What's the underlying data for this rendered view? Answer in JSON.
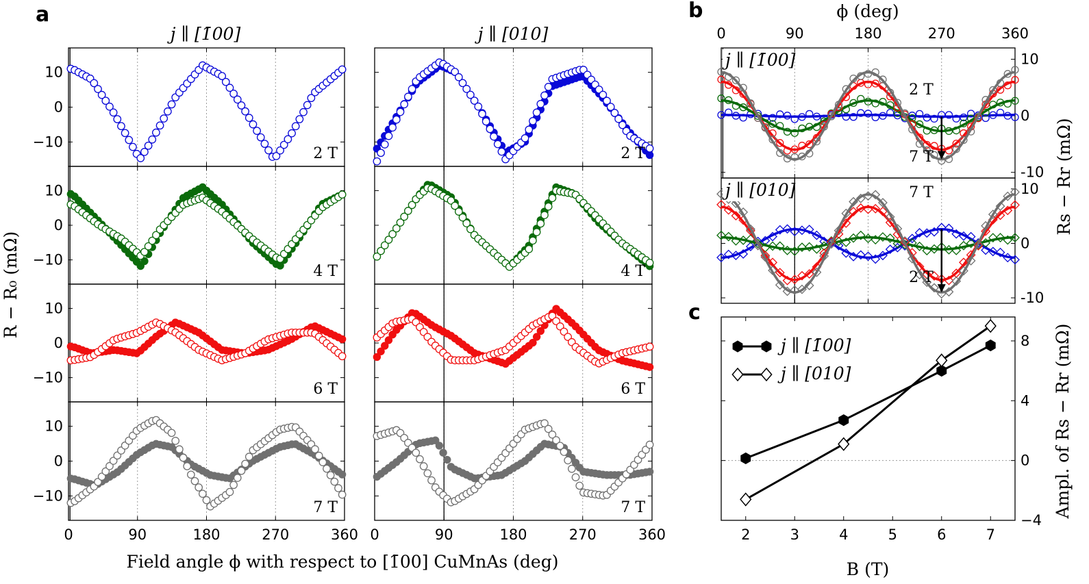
{
  "panel_letters": {
    "a": "a",
    "b": "b",
    "c": "c"
  },
  "colors": {
    "2T": "#0a0ad8",
    "4T": "#0b6b0b",
    "6T": "#f01010",
    "7T": "#707070"
  },
  "chart_data": [
    {
      "id": "a",
      "type": "scatter",
      "column_titles": [
        "j ∥ [1̄00]",
        "j ∥ [010]"
      ],
      "ylabel": "R − R₀ (mΩ)",
      "xlabel": "Field angle ϕ with respect to [1̄00] CuMnAs (deg)",
      "xlim": [
        0,
        360
      ],
      "ylim": [
        -17,
        17
      ],
      "xticks": [
        0,
        90,
        180,
        270,
        360
      ],
      "yticks": [
        -10,
        0,
        10
      ],
      "rows": [
        {
          "label": "2 T",
          "field": "2T",
          "left": {
            "open": [
              [
                5,
                11
              ],
              [
                30,
                8
              ],
              [
                60,
                -2
              ],
              [
                93,
                -15
              ],
              [
                110,
                -9
              ],
              [
                140,
                3
              ],
              [
                175,
                12
              ],
              [
                200,
                9
              ],
              [
                230,
                -1
              ],
              [
                268,
                -15
              ],
              [
                290,
                -8
              ],
              [
                320,
                4
              ],
              [
                358,
                11
              ]
            ],
            "filled": [
              [
                5,
                11
              ],
              [
                30,
                8
              ],
              [
                60,
                -2
              ],
              [
                93,
                -15
              ],
              [
                110,
                -9
              ],
              [
                140,
                3
              ],
              [
                175,
                12
              ],
              [
                200,
                9
              ],
              [
                230,
                -1
              ],
              [
                268,
                -15
              ],
              [
                290,
                -8
              ],
              [
                320,
                4
              ],
              [
                358,
                11
              ]
            ]
          },
          "right": {
            "open": [
              [
                0,
                -17
              ],
              [
                25,
                -5
              ],
              [
                55,
                8
              ],
              [
                85,
                13
              ],
              [
                105,
                10
              ],
              [
                135,
                0
              ],
              [
                170,
                -15
              ],
              [
                195,
                -9
              ],
              [
                230,
                8
              ],
              [
                270,
                11
              ],
              [
                295,
                4
              ],
              [
                330,
                -8
              ],
              [
                358,
                -12
              ]
            ],
            "filled": [
              [
                0,
                -13
              ],
              [
                25,
                -4
              ],
              [
                55,
                7
              ],
              [
                85,
                12
              ],
              [
                105,
                10
              ],
              [
                135,
                0
              ],
              [
                170,
                -13
              ],
              [
                195,
                -10
              ],
              [
                230,
                6
              ],
              [
                270,
                9
              ],
              [
                295,
                3
              ],
              [
                330,
                -7
              ],
              [
                358,
                -14
              ]
            ]
          }
        },
        {
          "label": "4 T",
          "field": "4T",
          "left": {
            "open": [
              [
                5,
                6
              ],
              [
                40,
                0
              ],
              [
                70,
                -4
              ],
              [
                95,
                -9
              ],
              [
                120,
                -1
              ],
              [
                150,
                6
              ],
              [
                175,
                8
              ],
              [
                200,
                4
              ],
              [
                240,
                -4
              ],
              [
                275,
                -10
              ],
              [
                300,
                -3
              ],
              [
                330,
                5
              ],
              [
                358,
                9
              ]
            ],
            "filled": [
              [
                5,
                9
              ],
              [
                40,
                1
              ],
              [
                70,
                -6
              ],
              [
                95,
                -12
              ],
              [
                120,
                -2
              ],
              [
                150,
                8
              ],
              [
                175,
                11
              ],
              [
                200,
                6
              ],
              [
                240,
                -5
              ],
              [
                275,
                -12
              ],
              [
                300,
                -4
              ],
              [
                330,
                6
              ],
              [
                358,
                9
              ]
            ]
          },
          "right": {
            "open": [
              [
                0,
                -10
              ],
              [
                25,
                -2
              ],
              [
                55,
                8
              ],
              [
                70,
                11
              ],
              [
                100,
                7
              ],
              [
                130,
                -3
              ],
              [
                175,
                -12
              ],
              [
                200,
                -7
              ],
              [
                235,
                10
              ],
              [
                260,
                9
              ],
              [
                290,
                2
              ],
              [
                320,
                -5
              ],
              [
                358,
                -11
              ]
            ],
            "filled": [
              [
                0,
                -10
              ],
              [
                25,
                -2
              ],
              [
                55,
                8
              ],
              [
                70,
                12
              ],
              [
                100,
                8
              ],
              [
                130,
                -3
              ],
              [
                175,
                -12
              ],
              [
                200,
                -6
              ],
              [
                235,
                11
              ],
              [
                260,
                9
              ],
              [
                290,
                1
              ],
              [
                320,
                -5
              ],
              [
                358,
                -12
              ]
            ]
          }
        },
        {
          "label": "6 T",
          "field": "6T",
          "left": {
            "open": [
              [
                5,
                -5
              ],
              [
                30,
                -4
              ],
              [
                60,
                1
              ],
              [
                90,
                3
              ],
              [
                115,
                6
              ],
              [
                140,
                3
              ],
              [
                170,
                -2
              ],
              [
                200,
                -5
              ],
              [
                230,
                -3
              ],
              [
                260,
                1
              ],
              [
                290,
                3
              ],
              [
                320,
                3
              ],
              [
                358,
                -4
              ]
            ],
            "filled": [
              [
                5,
                -1
              ],
              [
                30,
                -3
              ],
              [
                60,
                -2
              ],
              [
                90,
                -3
              ],
              [
                115,
                2
              ],
              [
                140,
                6
              ],
              [
                170,
                3
              ],
              [
                200,
                -2
              ],
              [
                230,
                -3
              ],
              [
                260,
                -2
              ],
              [
                290,
                1
              ],
              [
                320,
                5
              ],
              [
                358,
                1
              ]
            ]
          },
          "right": {
            "open": [
              [
                0,
                1
              ],
              [
                25,
                6
              ],
              [
                50,
                7
              ],
              [
                75,
                0
              ],
              [
                100,
                -5
              ],
              [
                130,
                -5
              ],
              [
                170,
                -2
              ],
              [
                205,
                5
              ],
              [
                230,
                8
              ],
              [
                260,
                -1
              ],
              [
                290,
                -6
              ],
              [
                320,
                -3
              ],
              [
                358,
                -1
              ]
            ],
            "filled": [
              [
                0,
                -5
              ],
              [
                25,
                3
              ],
              [
                50,
                9
              ],
              [
                75,
                5
              ],
              [
                100,
                2
              ],
              [
                130,
                -3
              ],
              [
                170,
                -6
              ],
              [
                205,
                0
              ],
              [
                235,
                10
              ],
              [
                260,
                5
              ],
              [
                290,
                -2
              ],
              [
                320,
                -5
              ],
              [
                358,
                -7
              ]
            ]
          }
        },
        {
          "label": "7 T",
          "field": "7T",
          "left": {
            "open": [
              [
                5,
                -12
              ],
              [
                35,
                -7
              ],
              [
                65,
                2
              ],
              [
                90,
                9
              ],
              [
                113,
                12
              ],
              [
                135,
                8
              ],
              [
                160,
                -4
              ],
              [
                185,
                -13
              ],
              [
                210,
                -9
              ],
              [
                240,
                3
              ],
              [
                275,
                9
              ],
              [
                295,
                10
              ],
              [
                320,
                4
              ],
              [
                358,
                -10
              ]
            ],
            "filled": [
              [
                5,
                -5
              ],
              [
                35,
                -7
              ],
              [
                65,
                -3
              ],
              [
                90,
                2
              ],
              [
                113,
                5
              ],
              [
                135,
                4
              ],
              [
                160,
                -1
              ],
              [
                185,
                -4
              ],
              [
                210,
                -5
              ],
              [
                240,
                0
              ],
              [
                275,
                4
              ],
              [
                295,
                5
              ],
              [
                320,
                2
              ],
              [
                358,
                -4
              ]
            ]
          },
          "right": {
            "open": [
              [
                0,
                7
              ],
              [
                30,
                9
              ],
              [
                55,
                2
              ],
              [
                80,
                -8
              ],
              [
                100,
                -12
              ],
              [
                130,
                -8
              ],
              [
                165,
                1
              ],
              [
                195,
                9
              ],
              [
                220,
                11
              ],
              [
                245,
                3
              ],
              [
                270,
                -9
              ],
              [
                300,
                -10
              ],
              [
                330,
                -3
              ],
              [
                358,
                5
              ]
            ],
            "filled": [
              [
                0,
                -5
              ],
              [
                30,
                0
              ],
              [
                55,
                5
              ],
              [
                80,
                6
              ],
              [
                100,
                -2
              ],
              [
                130,
                -5
              ],
              [
                165,
                -4
              ],
              [
                195,
                0
              ],
              [
                220,
                5
              ],
              [
                245,
                4
              ],
              [
                270,
                -3
              ],
              [
                300,
                -4
              ],
              [
                330,
                -4
              ],
              [
                358,
                -3
              ]
            ]
          }
        }
      ]
    },
    {
      "id": "b",
      "type": "scatter",
      "xlabel": "ϕ (deg)",
      "ylabel": "Rs − Rr (mΩ)",
      "xlim": [
        0,
        360
      ],
      "ylim": [
        -11,
        12
      ],
      "xticks": [
        0,
        90,
        180,
        270,
        360
      ],
      "yticks": [
        -10,
        0,
        10
      ],
      "ytick_labels": [
        "-10",
        "0",
        "10"
      ],
      "top": {
        "label": "j ∥ [1̄00]",
        "fields": [
          "2T",
          "4T",
          "6T",
          "7T"
        ],
        "amplitudes": [
          0.15,
          2.7,
          6.0,
          7.7
        ],
        "annotation_start": "2 T",
        "annotation_end": "7 T"
      },
      "bottom": {
        "label": "j ∥ [010]",
        "fields": [
          "2T",
          "4T",
          "6T",
          "7T"
        ],
        "amplitudes": [
          -2.6,
          1.1,
          6.7,
          9.0
        ],
        "annotation_start": "7 T",
        "annotation_end": "2 T"
      }
    },
    {
      "id": "c",
      "type": "line",
      "xlabel": "B (T)",
      "ylabel": "Ampl. of Rs − Rr (mΩ)",
      "xlim": [
        1.5,
        7.5
      ],
      "ylim": [
        -4,
        9.6
      ],
      "xticks": [
        2,
        3,
        4,
        5,
        6,
        7
      ],
      "yticks": [
        -4,
        0,
        4,
        8
      ],
      "ytick_labels": [
        "−4",
        "0",
        "4",
        "8"
      ],
      "series": [
        {
          "name": "j ∥ [1̄00]",
          "marker": "filled-hexagon",
          "x": [
            2,
            4,
            6,
            7
          ],
          "y": [
            0.15,
            2.7,
            6.0,
            7.7
          ]
        },
        {
          "name": "j ∥ [010]",
          "marker": "open-diamond",
          "x": [
            2,
            4,
            6,
            7
          ],
          "y": [
            -2.6,
            1.1,
            6.7,
            9.0
          ]
        }
      ]
    }
  ]
}
